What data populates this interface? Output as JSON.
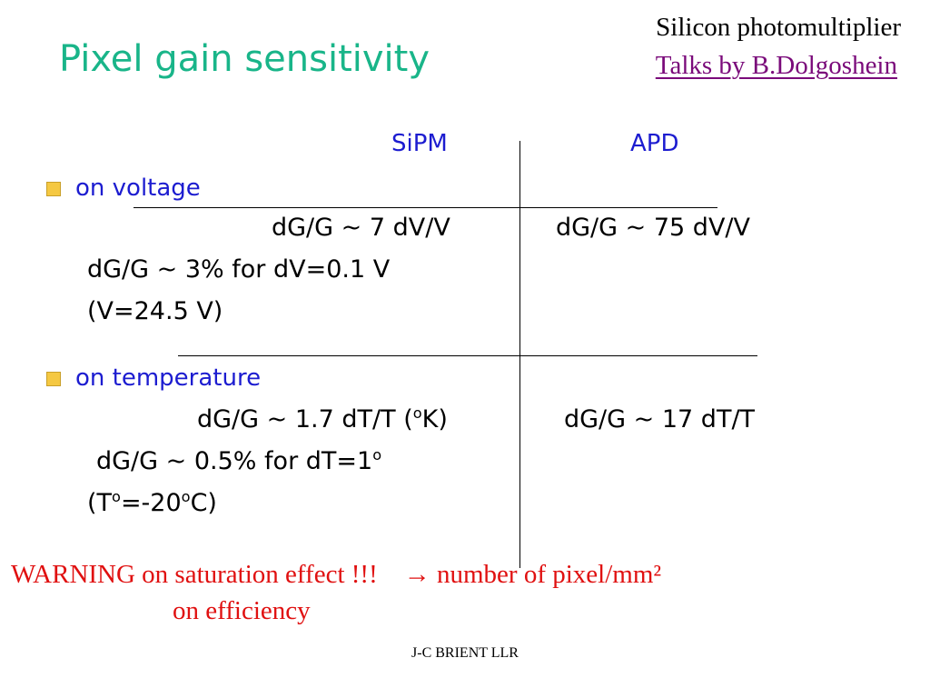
{
  "slide": {
    "title": "Pixel gain sensitivity",
    "corner_line1": "Silicon photomultiplier",
    "corner_line2": "Talks by B.Dolgoshein",
    "col_sipm": "SiPM",
    "col_apd": "APD",
    "voltage": {
      "heading": "on voltage",
      "sipm_value": "dG/G ~ 7 dV/V",
      "apd_value": "dG/G ~ 75 dV/V",
      "note_line1": "dG/G ~  3% for dV=0.1 V",
      "note_line2": "(V=24.5 V)"
    },
    "temperature": {
      "heading": "on temperature",
      "sipm_value_pre": "dG/G ~ 1.7 dT/T (",
      "sipm_value_sup": "o",
      "sipm_value_post": "K)",
      "apd_value": "dG/G ~  17 dT/T",
      "note_line1_pre": "dG/G ~ 0.5% for dT=1",
      "note_line1_sup": "o",
      "note_line2_a": "(T",
      "note_line2_sup1": "o",
      "note_line2_b": "=-20",
      "note_line2_sup2": "o",
      "note_line2_c": "C)"
    },
    "warning_line1": "WARNING on saturation effect !!!",
    "warning_arrow": "→",
    "warning_tail": "number of pixel/mm²",
    "warning_line2": "on efficiency",
    "footer": "J-C BRIENT  LLR"
  }
}
